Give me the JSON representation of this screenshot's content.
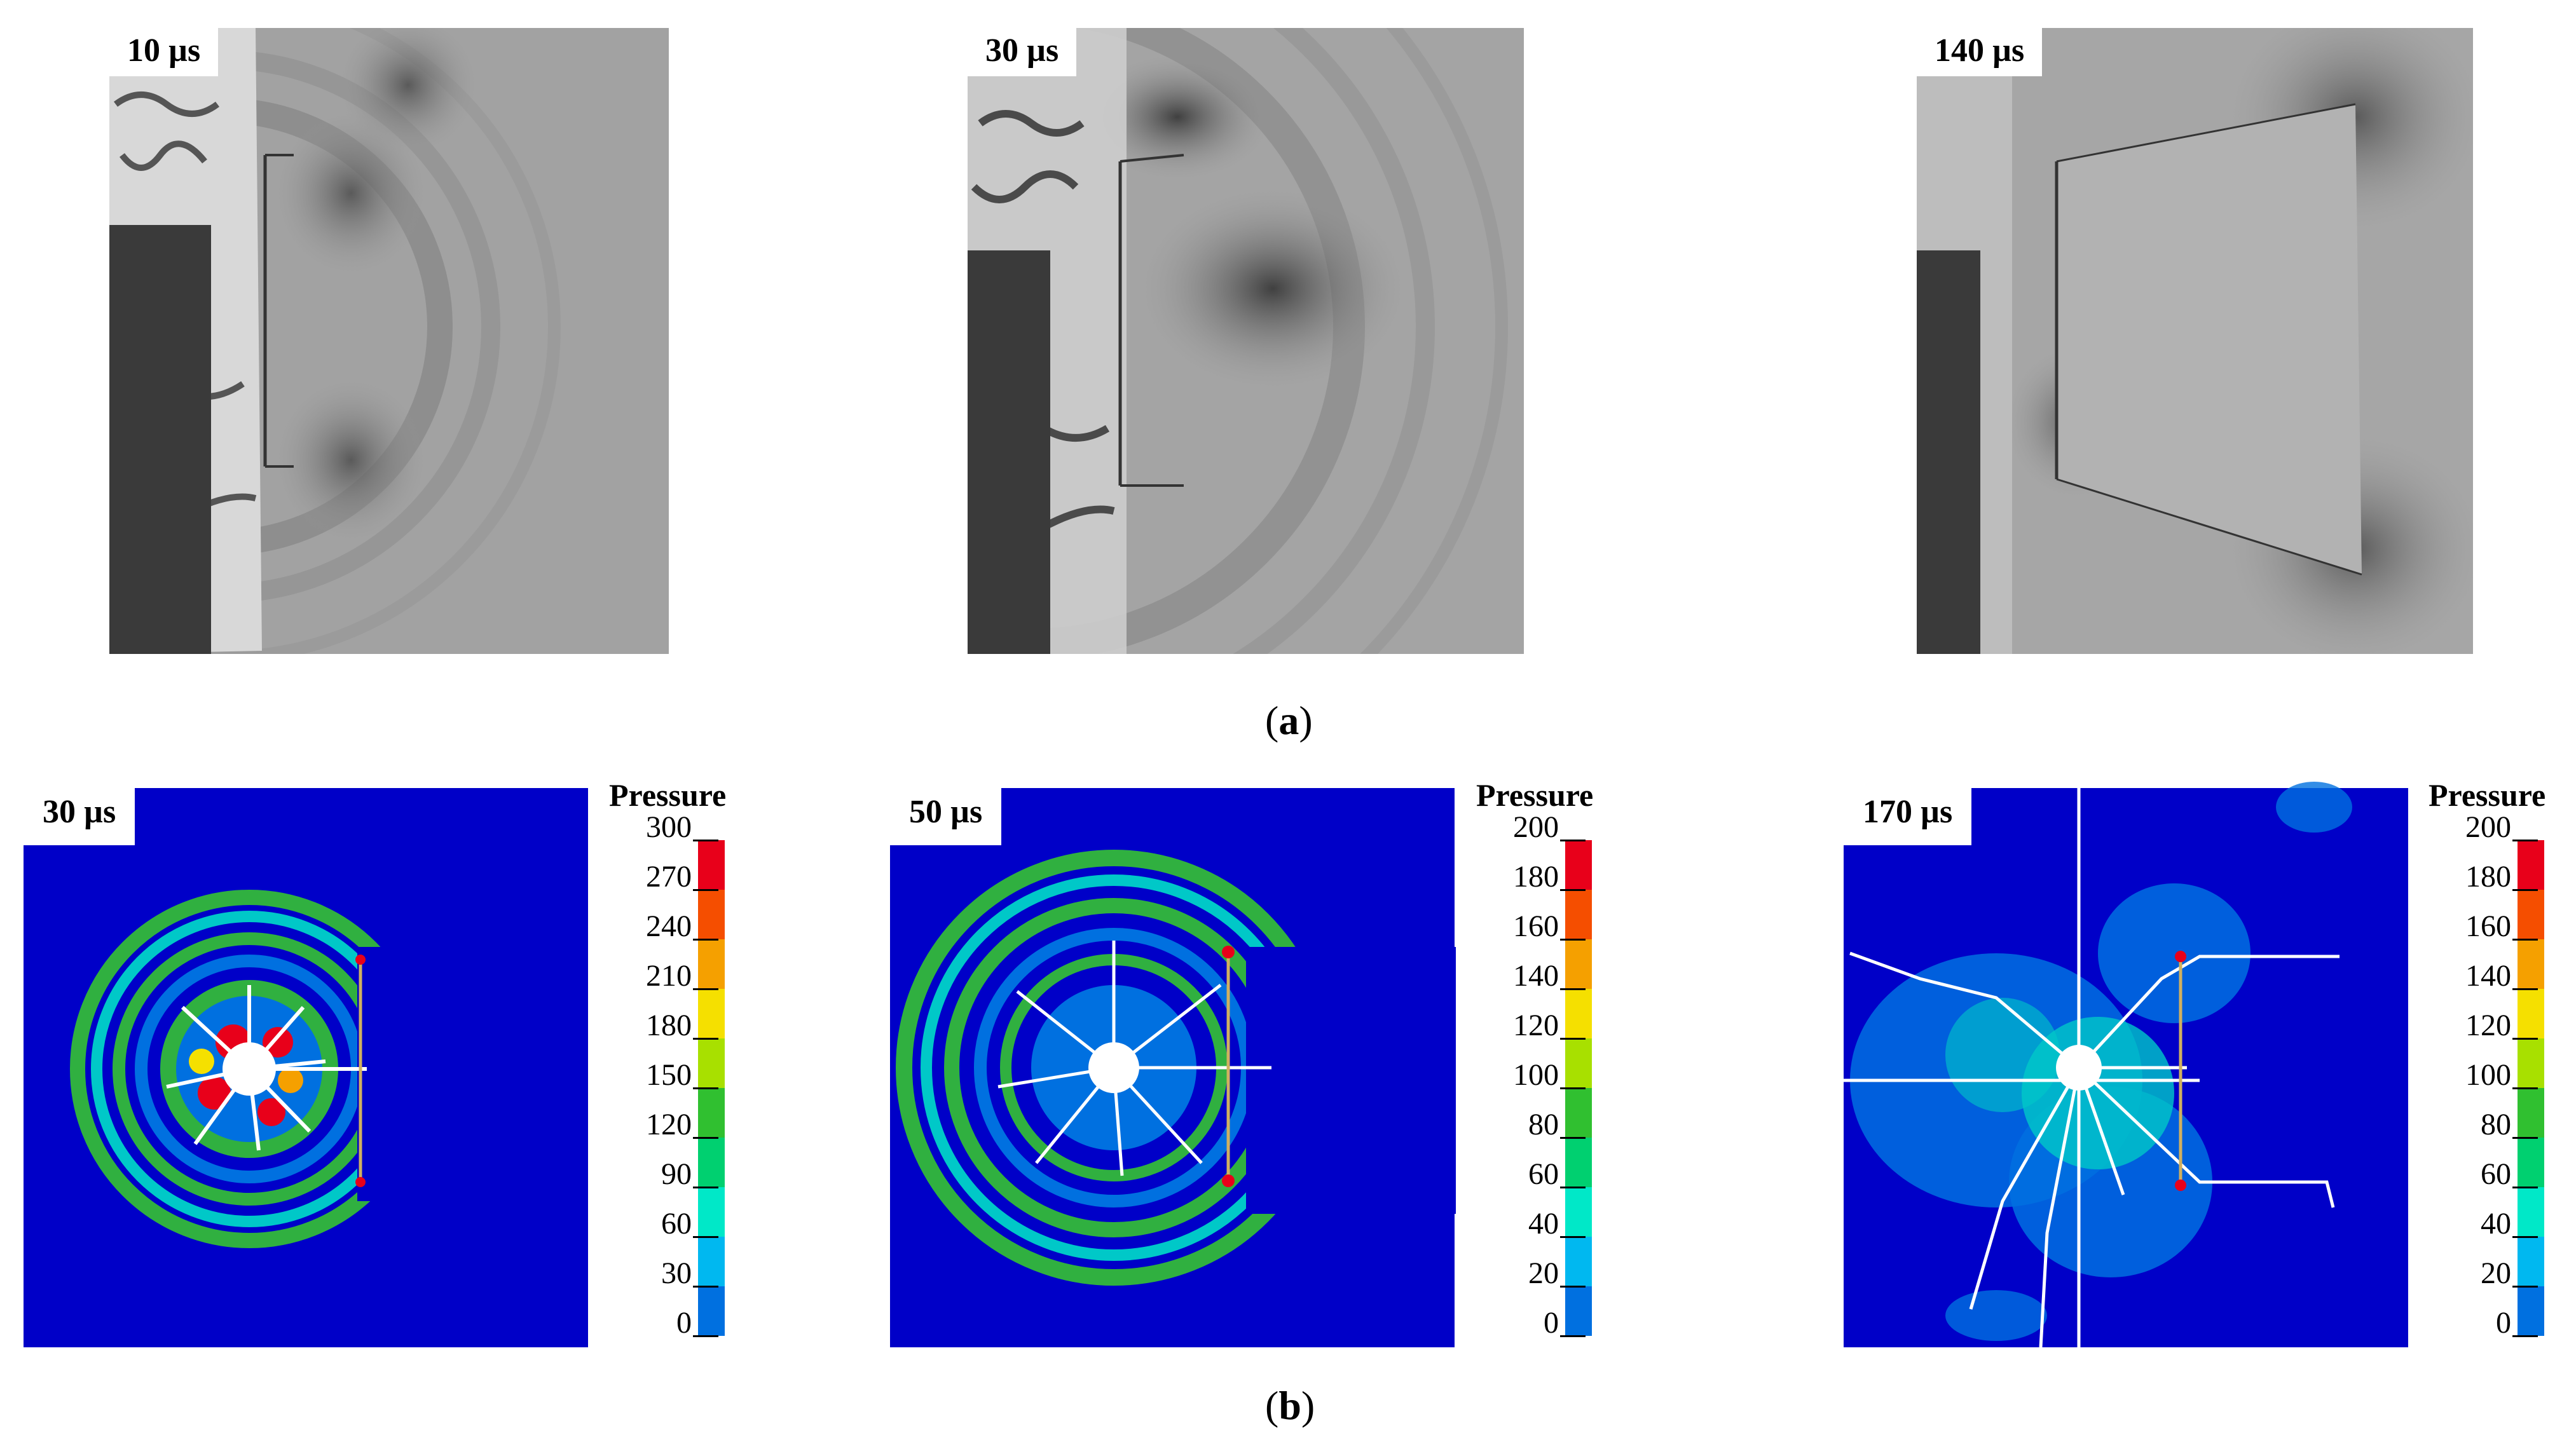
{
  "panel_a": {
    "caption_open": "(",
    "caption_letter": "a",
    "caption_close": ")",
    "frames": [
      {
        "time": "10 µs"
      },
      {
        "time": "30 µs"
      },
      {
        "time": "140 µs"
      }
    ]
  },
  "panel_b": {
    "caption_open": "(",
    "caption_letter": "b",
    "caption_close": ")",
    "frames": [
      {
        "time": "30 µs",
        "legend_title": "Pressure",
        "ticks": [
          "300",
          "270",
          "240",
          "210",
          "180",
          "150",
          "120",
          "90",
          "60",
          "30",
          "0"
        ]
      },
      {
        "time": "50 µs",
        "legend_title": "Pressure",
        "ticks": [
          "200",
          "180",
          "160",
          "140",
          "120",
          "100",
          "80",
          "60",
          "40",
          "20",
          "0"
        ]
      },
      {
        "time": "170 µs",
        "legend_title": "Pressure",
        "ticks": [
          "200",
          "180",
          "160",
          "140",
          "120",
          "100",
          "80",
          "60",
          "40",
          "20",
          "0"
        ]
      }
    ],
    "colormap": [
      "#e8001a",
      "#f54e00",
      "#f5a000",
      "#f5e000",
      "#a8e000",
      "#30c030",
      "#00d070",
      "#00e8c8",
      "#00b8f0",
      "#0070e0",
      "#0000e0"
    ]
  }
}
